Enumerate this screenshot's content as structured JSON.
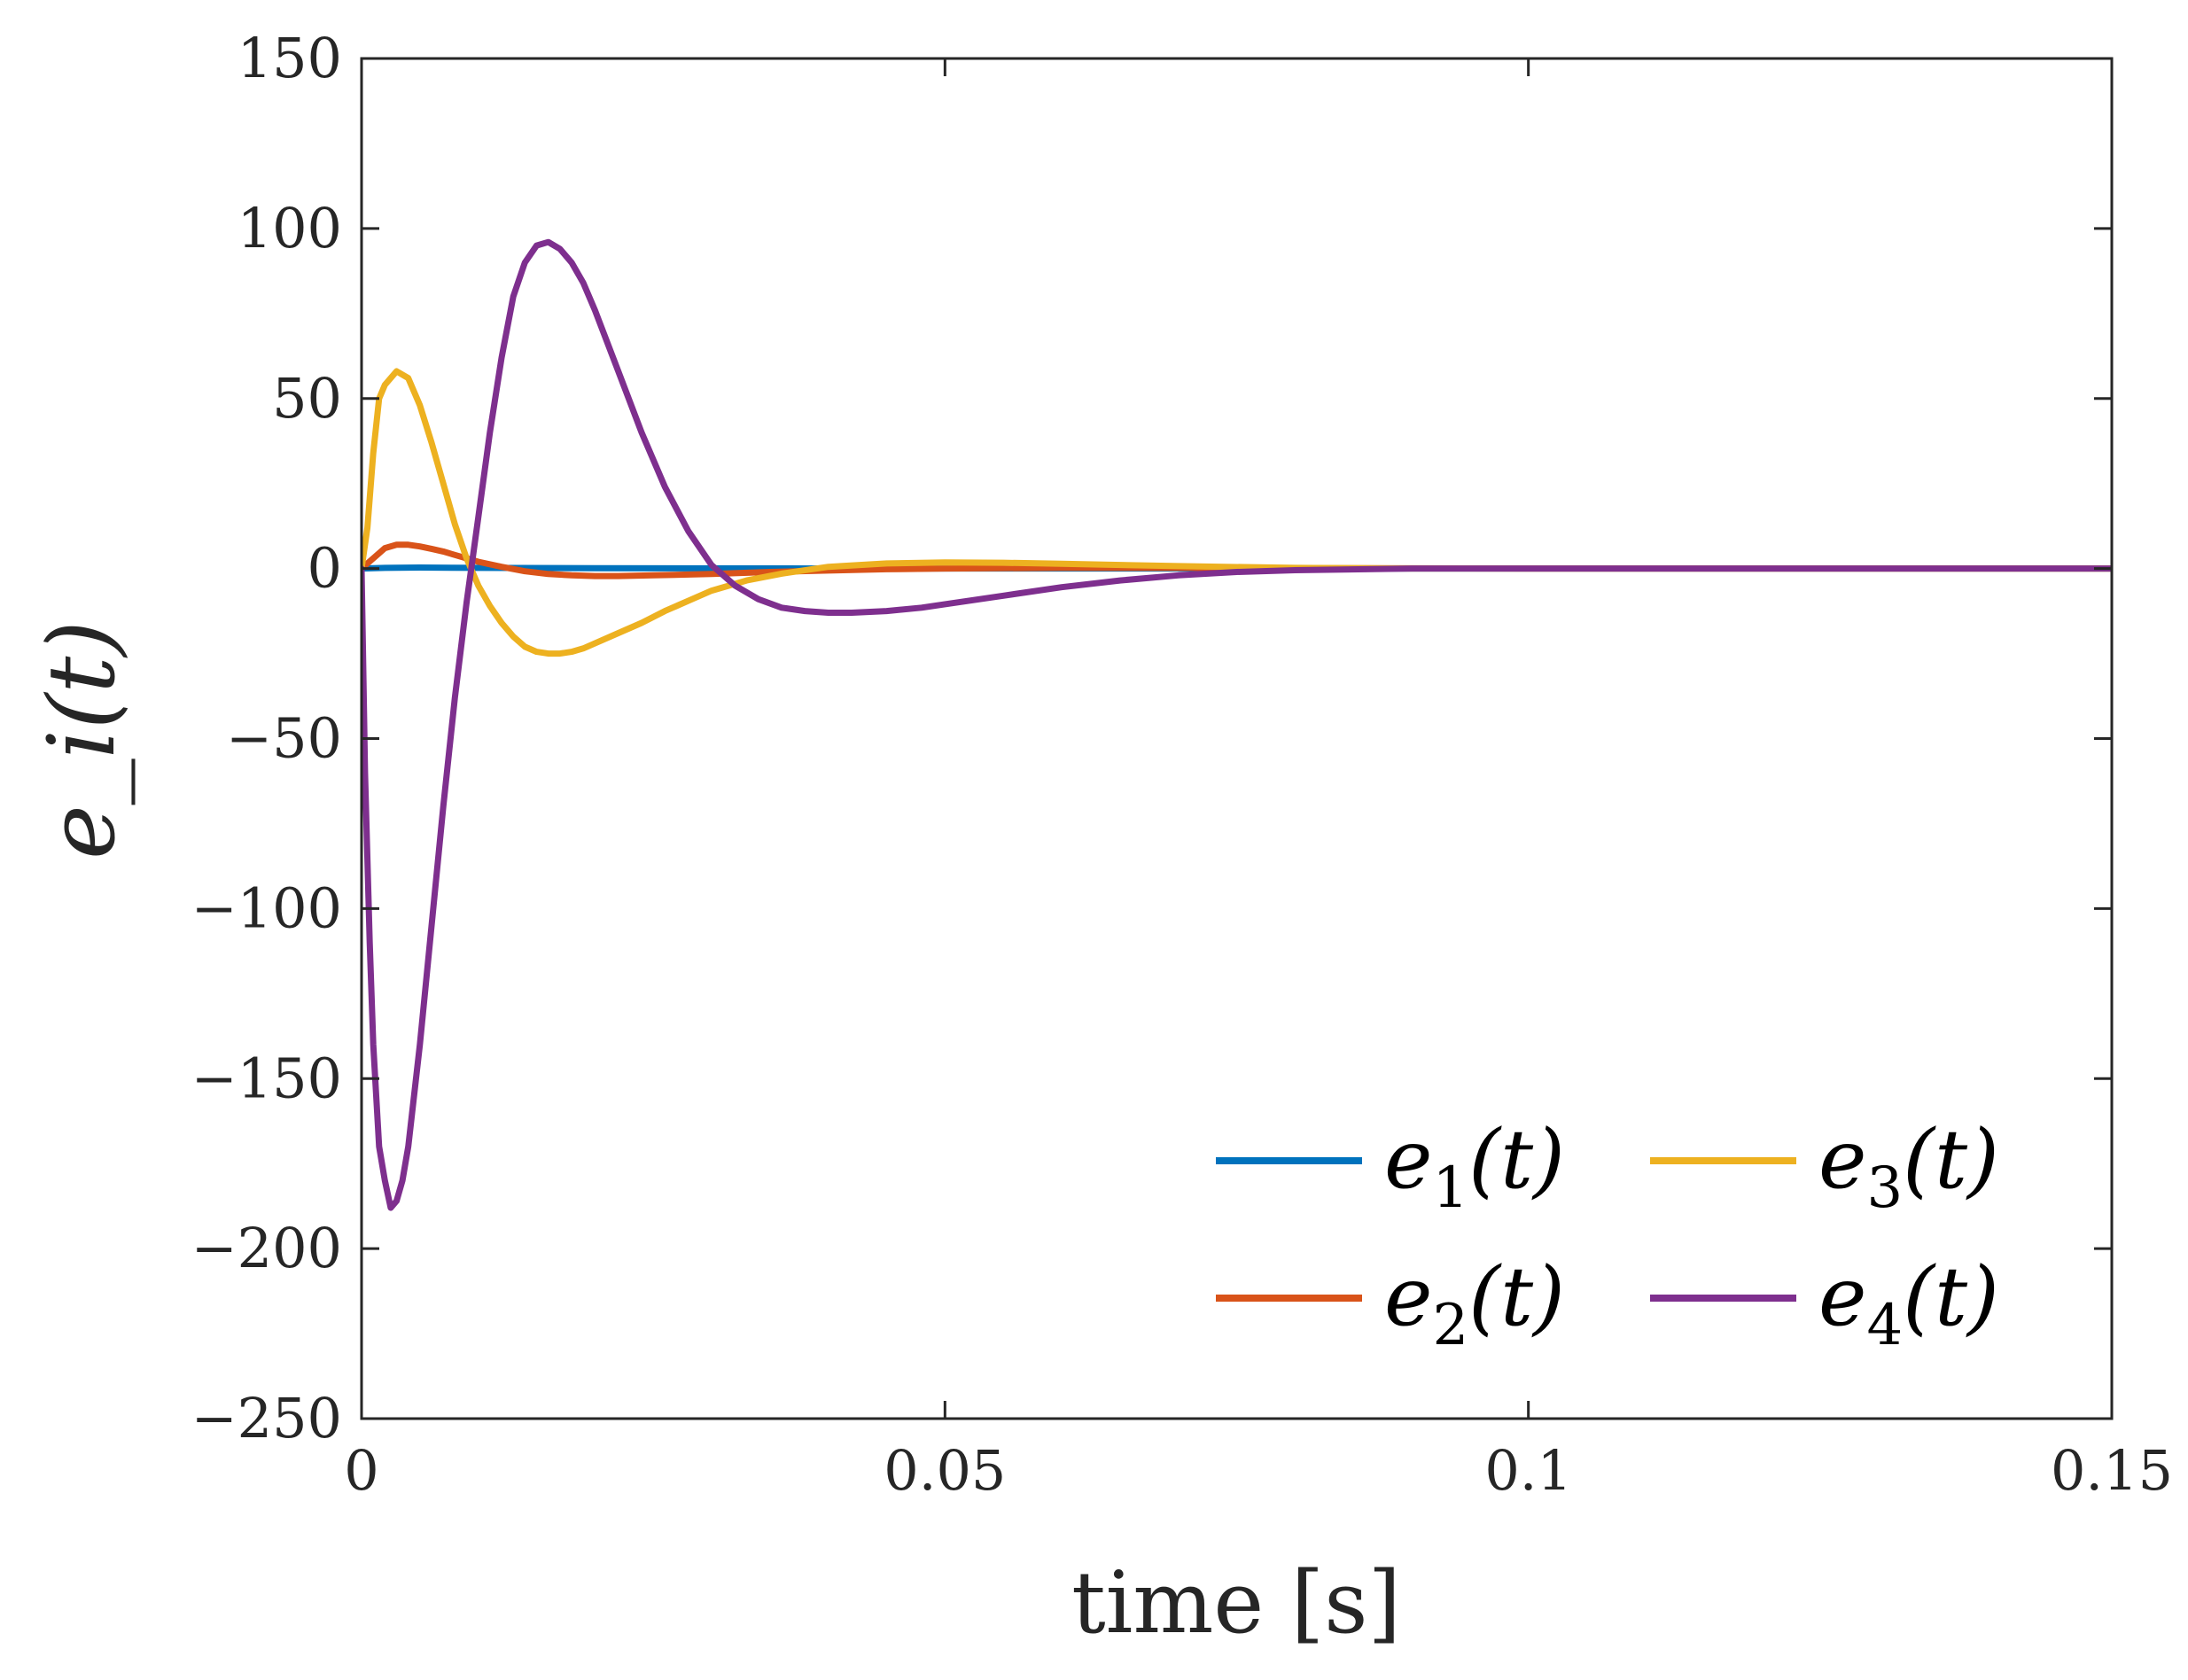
{
  "chart_data": {
    "type": "line",
    "title": "",
    "xlabel": "time [s]",
    "ylabel": "e_i(t)",
    "xlim": [
      0,
      0.15
    ],
    "ylim": [
      -250,
      150
    ],
    "xticks": [
      0,
      0.05,
      0.1,
      0.15
    ],
    "xtick_labels": [
      "0",
      "0.05",
      "0.1",
      "0.15"
    ],
    "yticks": [
      150,
      100,
      50,
      0,
      -50,
      -100,
      -150,
      -200,
      -250
    ],
    "ytick_labels": [
      "150",
      "100",
      "50",
      "0",
      "−50",
      "−100",
      "−150",
      "−200",
      "−250"
    ],
    "grid": false,
    "legend_position": "bottom-right",
    "series": [
      {
        "name": "e1(t)",
        "label_main": "e",
        "label_sub": "1",
        "label_rest": "(t)",
        "color": "#0072BD",
        "x": [
          0,
          0.002,
          0.005,
          0.01,
          0.02,
          0.04,
          0.08,
          0.15
        ],
        "y": [
          0,
          0.2,
          0.3,
          0.2,
          0.1,
          0.0,
          0.0,
          0.0
        ]
      },
      {
        "name": "e2(t)",
        "label_main": "e",
        "label_sub": "2",
        "label_rest": "(t)",
        "color": "#D95319",
        "x": [
          0,
          0.001,
          0.002,
          0.003,
          0.004,
          0.005,
          0.006,
          0.007,
          0.008,
          0.009,
          0.01,
          0.012,
          0.014,
          0.016,
          0.018,
          0.02,
          0.022,
          0.025,
          0.03,
          0.035,
          0.04,
          0.045,
          0.05,
          0.06,
          0.07,
          0.08,
          0.1,
          0.15
        ],
        "y": [
          0,
          3,
          6,
          7,
          7,
          6.5,
          5.8,
          5,
          4,
          3,
          2,
          0.5,
          -0.8,
          -1.6,
          -2,
          -2.2,
          -2.2,
          -2,
          -1.6,
          -1,
          -0.6,
          -0.2,
          0,
          0.2,
          0.2,
          0.1,
          0,
          0
        ]
      },
      {
        "name": "e3(t)",
        "label_main": "e",
        "label_sub": "3",
        "label_rest": "(t)",
        "color": "#EDB120",
        "x": [
          0,
          0.0005,
          0.001,
          0.0015,
          0.002,
          0.003,
          0.004,
          0.005,
          0.006,
          0.007,
          0.008,
          0.009,
          0.01,
          0.011,
          0.012,
          0.013,
          0.014,
          0.015,
          0.016,
          0.017,
          0.018,
          0.019,
          0.02,
          0.022,
          0.024,
          0.026,
          0.028,
          0.03,
          0.033,
          0.036,
          0.04,
          0.045,
          0.05,
          0.055,
          0.06,
          0.07,
          0.08,
          0.09,
          0.1,
          0.12,
          0.15
        ],
        "y": [
          0,
          12,
          34,
          50,
          54,
          58,
          56,
          48,
          37,
          25,
          13,
          3,
          -5,
          -11,
          -16,
          -20,
          -23,
          -24.5,
          -25,
          -25,
          -24.5,
          -23.5,
          -22,
          -19,
          -16,
          -12.5,
          -9.5,
          -6.5,
          -3.5,
          -1.5,
          0.5,
          1.5,
          1.8,
          1.7,
          1.4,
          0.7,
          0.2,
          0,
          0,
          0,
          0
        ]
      },
      {
        "name": "e4(t)",
        "label_main": "e",
        "label_sub": "4",
        "label_rest": "(t)",
        "color": "#7E2F8E",
        "x": [
          0,
          0.0003,
          0.0007,
          0.001,
          0.0015,
          0.002,
          0.0025,
          0.003,
          0.0035,
          0.004,
          0.005,
          0.006,
          0.007,
          0.008,
          0.009,
          0.01,
          0.011,
          0.012,
          0.013,
          0.014,
          0.015,
          0.016,
          0.017,
          0.018,
          0.019,
          0.02,
          0.022,
          0.024,
          0.026,
          0.028,
          0.03,
          0.032,
          0.034,
          0.036,
          0.038,
          0.04,
          0.042,
          0.045,
          0.048,
          0.05,
          0.055,
          0.06,
          0.065,
          0.07,
          0.075,
          0.08,
          0.09,
          0.1,
          0.12,
          0.15
        ],
        "y": [
          0,
          -60,
          -110,
          -140,
          -170,
          -180,
          -188,
          -186,
          -180,
          -170,
          -140,
          -105,
          -70,
          -38,
          -10,
          15,
          40,
          62,
          80,
          90,
          95,
          96,
          94,
          90,
          84,
          76,
          58,
          40,
          24,
          11,
          1,
          -5,
          -9,
          -11.5,
          -12.5,
          -13,
          -13,
          -12.5,
          -11.5,
          -10.5,
          -8,
          -5.5,
          -3.5,
          -2,
          -1,
          -0.5,
          0,
          0,
          0,
          0
        ]
      }
    ]
  }
}
